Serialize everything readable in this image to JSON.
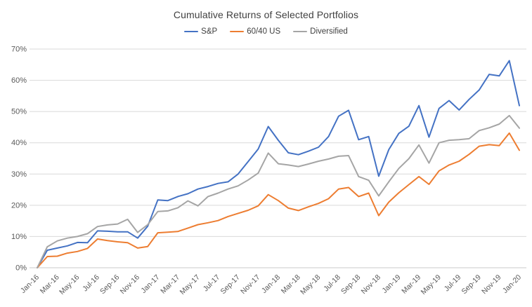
{
  "chart_data": {
    "type": "line",
    "title": "Cumulative Returns of Selected Portfolios",
    "xlabel": "",
    "ylabel": "",
    "unit": "%",
    "grid": true,
    "legend_position": "top-center",
    "y_axis": {
      "min": 0,
      "max": 70,
      "step": 10,
      "tick_labels": [
        "0%",
        "10%",
        "20%",
        "30%",
        "40%",
        "50%",
        "60%",
        "70%"
      ]
    },
    "x": [
      "Jan-16",
      "Feb-16",
      "Mar-16",
      "Apr-16",
      "May-16",
      "Jun-16",
      "Jul-16",
      "Aug-16",
      "Sep-16",
      "Oct-16",
      "Nov-16",
      "Dec-16",
      "Jan-17",
      "Feb-17",
      "Mar-17",
      "Apr-17",
      "May-17",
      "Jun-17",
      "Jul-17",
      "Aug-17",
      "Sep-17",
      "Oct-17",
      "Nov-17",
      "Dec-17",
      "Jan-18",
      "Feb-18",
      "Mar-18",
      "Apr-18",
      "May-18",
      "Jun-18",
      "Jul-18",
      "Aug-18",
      "Sep-18",
      "Oct-18",
      "Nov-18",
      "Dec-18",
      "Jan-19",
      "Feb-19",
      "Mar-19",
      "Apr-19",
      "May-19",
      "Jun-19",
      "Jul-19",
      "Aug-19",
      "Sep-19",
      "Oct-19",
      "Nov-19",
      "Dec-19",
      "Jan-20"
    ],
    "x_tick_labels": [
      "Jan-16",
      "Mar-16",
      "May-16",
      "Jul-16",
      "Sep-16",
      "Nov-16",
      "Jan-17",
      "Mar-17",
      "May-17",
      "Jul-17",
      "Sep-17",
      "Nov-17",
      "Jan-18",
      "Mar-18",
      "May-18",
      "Jul-18",
      "Sep-18",
      "Nov-18",
      "Jan-19",
      "Mar-19",
      "May-19",
      "Jul-19",
      "Sep-19",
      "Nov-19",
      "Jan-20"
    ],
    "x_tick_interval": 2,
    "series": [
      {
        "name": "S&P",
        "color": "#4472C4",
        "values": [
          0,
          5.6,
          6.3,
          7.0,
          8.1,
          8.0,
          11.8,
          11.7,
          11.5,
          11.5,
          9.5,
          13.3,
          21.7,
          21.5,
          22.8,
          23.7,
          25.2,
          26.0,
          27.0,
          27.5,
          30.0,
          34.0,
          38.0,
          45.2,
          40.8,
          36.8,
          36.2,
          37.3,
          38.6,
          42.0,
          48.5,
          50.4,
          41.0,
          42.0,
          29.3,
          37.8,
          43.0,
          45.3,
          51.9,
          41.8,
          51.0,
          53.5,
          50.5,
          53.9,
          56.9,
          61.9,
          61.4,
          66.3,
          51.9
        ]
      },
      {
        "name": "60/40 US",
        "color": "#ED7D31",
        "values": [
          0,
          3.6,
          3.7,
          4.7,
          5.2,
          6.2,
          9.2,
          8.7,
          8.3,
          8.0,
          6.3,
          6.8,
          11.2,
          11.4,
          11.6,
          12.7,
          13.8,
          14.4,
          15.1,
          16.4,
          17.4,
          18.4,
          19.8,
          23.4,
          21.5,
          19.1,
          18.3,
          19.5,
          20.6,
          22.1,
          25.2,
          25.7,
          22.8,
          23.9,
          16.7,
          21.0,
          24.0,
          26.6,
          29.2,
          26.7,
          31.0,
          32.9,
          34.1,
          36.3,
          38.9,
          39.4,
          39.1,
          43.1,
          37.6
        ]
      },
      {
        "name": "Diversified",
        "color": "#A5A5A5",
        "values": [
          0,
          6.7,
          8.6,
          9.5,
          10.0,
          10.9,
          13.2,
          13.7,
          14.0,
          15.5,
          11.3,
          13.8,
          18.0,
          18.2,
          19.2,
          21.4,
          19.8,
          22.8,
          23.9,
          25.2,
          26.2,
          28.1,
          30.3,
          36.7,
          33.3,
          32.9,
          32.4,
          33.2,
          34.1,
          34.8,
          35.7,
          35.9,
          29.2,
          28.0,
          23.0,
          27.5,
          31.8,
          34.9,
          39.3,
          33.5,
          40.0,
          40.8,
          41.0,
          41.3,
          43.9,
          44.8,
          46.0,
          48.7,
          44.7
        ]
      }
    ],
    "colors": {
      "gridline": "#D9D9D9",
      "axis_line": "#C9C9C9",
      "tick_label": "#595959",
      "title": "#404040"
    }
  }
}
